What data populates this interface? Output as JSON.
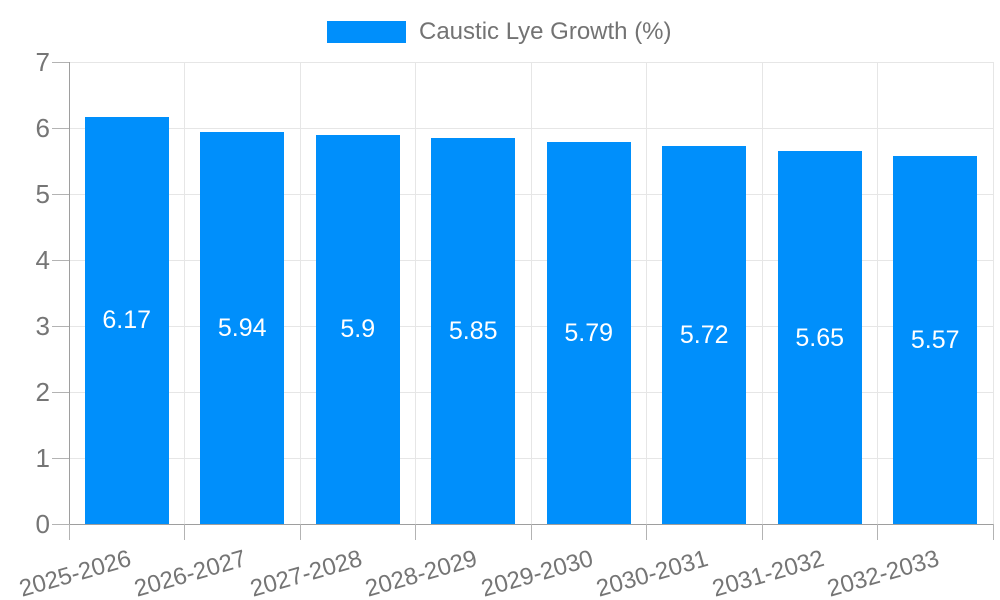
{
  "legend": {
    "label": "Caustic Lye Growth (%)"
  },
  "chart_data": {
    "type": "bar",
    "title": "",
    "xlabel": "",
    "ylabel": "",
    "categories": [
      "2025-2026",
      "2026-2027",
      "2027-2028",
      "2028-2029",
      "2029-2030",
      "2030-2031",
      "2031-2032",
      "2032-2033"
    ],
    "series": [
      {
        "name": "Caustic Lye Growth (%)",
        "values": [
          6.17,
          5.94,
          5.9,
          5.85,
          5.79,
          5.72,
          5.65,
          5.57
        ]
      }
    ],
    "data_labels": [
      "6.17",
      "5.94",
      "5.9",
      "5.85",
      "5.79",
      "5.72",
      "5.65",
      "5.57"
    ],
    "ylim": [
      0,
      7
    ],
    "yticks": [
      0,
      1,
      2,
      3,
      4,
      5,
      6,
      7
    ],
    "grid": true,
    "legend_position": "top",
    "x_label_rotation_deg": -16,
    "colors": {
      "bar": "#008FFB",
      "grid": "#e6e6e6",
      "axis": "#9e9e9e",
      "tick": "#b3b3b3",
      "tick_label": "#757575",
      "value_label": "#ffffff",
      "legend_text": "#737373",
      "background": "#ffffff"
    }
  }
}
